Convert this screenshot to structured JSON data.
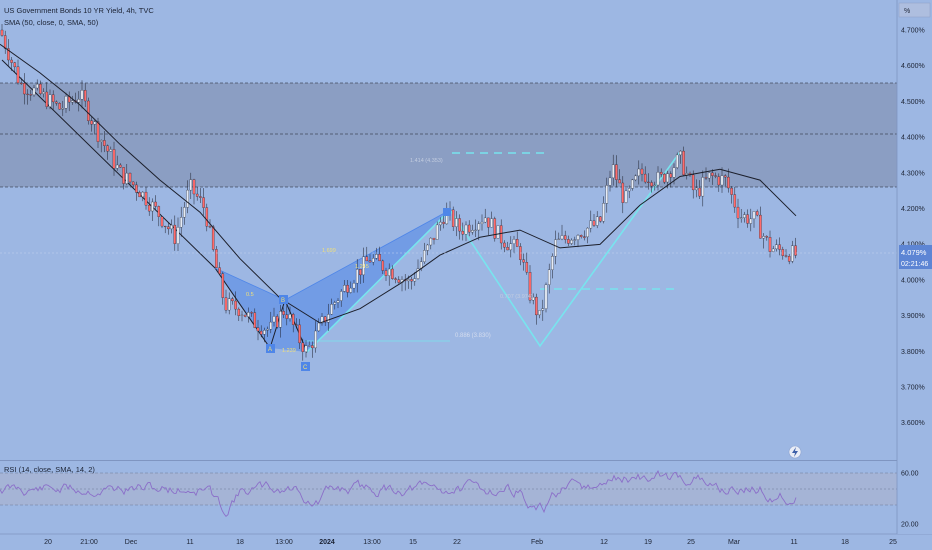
{
  "header": {
    "title": "US Government Bonds 10 YR Yield, 4h, TVC",
    "sma_label": "SMA (50, close, 0, SMA, 50)"
  },
  "rsi": {
    "label": "RSI (14, close, SMA, 14, 2)",
    "axis_labels": [
      "60.00",
      "20.00"
    ]
  },
  "price_axis": {
    "unit": "%",
    "labels": [
      "4.700%",
      "4.600%",
      "4.500%",
      "4.400%",
      "4.300%",
      "4.200%",
      "4.100%",
      "4.000%",
      "3.900%",
      "3.800%",
      "3.700%",
      "3.600%"
    ],
    "current_price": "4.079%",
    "countdown": "02:21:46"
  },
  "time_axis": {
    "labels": [
      "20",
      "21:00",
      "Dec",
      "11",
      "18",
      "13:00",
      "2024",
      "13:00",
      "15",
      "22",
      "Feb",
      "12",
      "19",
      "25",
      "Mar",
      "11",
      "18",
      "25"
    ]
  },
  "annotations": {
    "ratio_1": "1.414 (4.353)",
    "ratio_2": "1.699",
    "ratio_3": "1.245",
    "ratio_4": "0.5",
    "ratio_5": "1.239",
    "ratio_6": "0.886 (3.830)",
    "ratio_7": "0.707 (3.974)",
    "point_a": "A",
    "point_b": "B",
    "point_c": "C"
  },
  "colors": {
    "background": "#9db7e3",
    "zone": "#8a9bbf",
    "line": "#1c1f2b",
    "harmonic_fill": "#4f86e8",
    "pattern_line": "#78e4ee",
    "price_tag": "#5d85d4"
  },
  "icons": {
    "alert": "lightning-icon"
  },
  "chart_data": {
    "type": "line",
    "title": "US Government Bonds 10 YR Yield, 4h, TVC",
    "ylim": [
      3.55,
      4.75
    ],
    "x_ticks": [
      "20",
      "21:00",
      "Dec",
      "11",
      "18",
      "13:00",
      "2024",
      "13:00",
      "15",
      "22",
      "Feb",
      "12",
      "19",
      "25",
      "Mar",
      "11",
      "18",
      "25"
    ],
    "series": [
      {
        "name": "SMA (50, close, 0, SMA, 50)",
        "points": [
          [
            0,
            4.66
          ],
          [
            40,
            4.58
          ],
          [
            80,
            4.49
          ],
          [
            120,
            4.38
          ],
          [
            160,
            4.28
          ],
          [
            200,
            4.19
          ],
          [
            240,
            4.06
          ],
          [
            280,
            3.95
          ],
          [
            320,
            3.88
          ],
          [
            360,
            3.92
          ],
          [
            400,
            3.99
          ],
          [
            440,
            4.07
          ],
          [
            480,
            4.12
          ],
          [
            520,
            4.14
          ],
          [
            560,
            4.09
          ],
          [
            600,
            4.1
          ],
          [
            640,
            4.21
          ],
          [
            680,
            4.29
          ],
          [
            720,
            4.31
          ],
          [
            760,
            4.28
          ],
          [
            796,
            4.18
          ]
        ]
      }
    ],
    "zones": [
      {
        "from": 4.26,
        "to": 4.55
      }
    ],
    "current_value": 4.079
  }
}
